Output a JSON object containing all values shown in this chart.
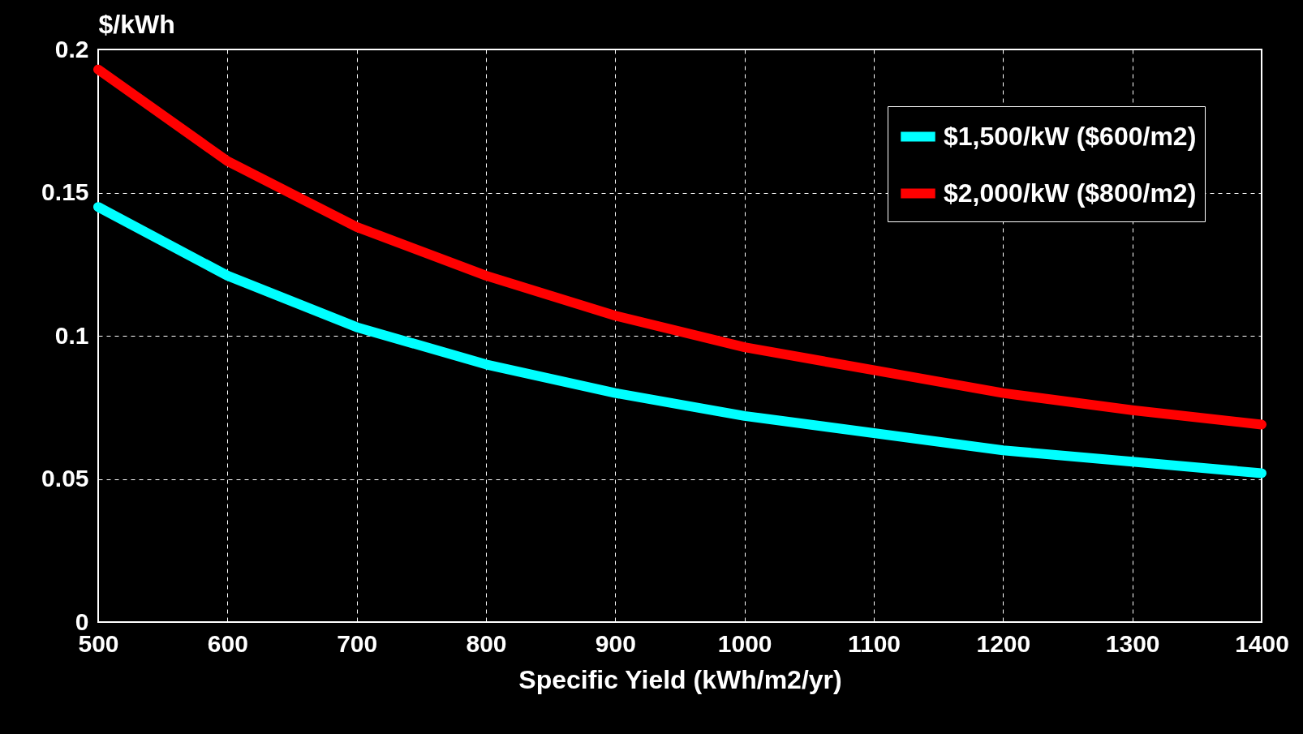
{
  "chart_data": {
    "type": "line",
    "xlabel": "Specific Yield (kWh/m2/yr)",
    "ylabel": "$/kWh",
    "x": [
      500,
      600,
      700,
      800,
      900,
      1000,
      1100,
      1200,
      1300,
      1400
    ],
    "series": [
      {
        "name": "$1,500/kW ($600/m2)",
        "color": "#00ffff",
        "values": [
          0.145,
          0.121,
          0.103,
          0.09,
          0.08,
          0.072,
          0.066,
          0.06,
          0.056,
          0.052
        ]
      },
      {
        "name": "$2,000/kW ($800/m2)",
        "color": "#ff0000",
        "values": [
          0.193,
          0.161,
          0.138,
          0.121,
          0.107,
          0.096,
          0.088,
          0.08,
          0.074,
          0.069
        ]
      }
    ],
    "xlim": [
      500,
      1400
    ],
    "xticks": [
      500,
      600,
      700,
      800,
      900,
      1000,
      1100,
      1200,
      1300,
      1400
    ],
    "ylim": [
      0,
      0.2
    ],
    "yticks": [
      0,
      0.05,
      0.1,
      0.15,
      0.2
    ],
    "grid": true,
    "legend": "top right"
  }
}
